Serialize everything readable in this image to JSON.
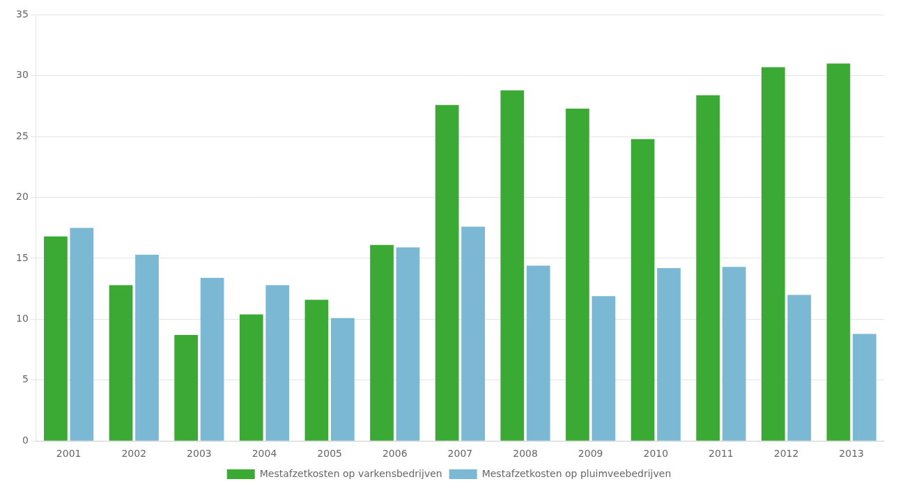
{
  "chart_data": {
    "type": "bar",
    "categories": [
      "2001",
      "2002",
      "2003",
      "2004",
      "2005",
      "2006",
      "2007",
      "2008",
      "2009",
      "2010",
      "2011",
      "2012",
      "2013"
    ],
    "series": [
      {
        "name": "Mestafzetkosten op varkensbedrijven",
        "color": "#3aaa35",
        "values": [
          16.8,
          12.8,
          8.7,
          10.4,
          11.6,
          16.1,
          27.6,
          28.8,
          27.3,
          24.8,
          28.4,
          30.7,
          31.0
        ]
      },
      {
        "name": "Mestafzetkosten op pluimveebedrijven",
        "color": "#7bb8d4",
        "values": [
          17.5,
          15.3,
          13.4,
          12.8,
          10.1,
          15.9,
          17.6,
          14.4,
          11.9,
          14.2,
          14.3,
          12.0,
          8.8
        ]
      }
    ],
    "ylim": [
      0,
      35
    ],
    "yticks": [
      0,
      5,
      10,
      15,
      20,
      25,
      30,
      35
    ],
    "grid": true,
    "legend": "bottom"
  }
}
